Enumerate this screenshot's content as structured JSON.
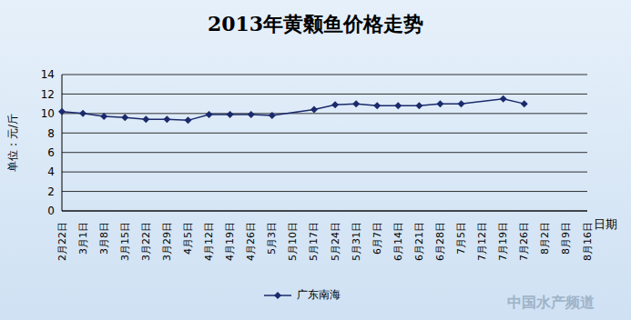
{
  "chart_data": {
    "type": "line",
    "title": "2013年黄颡鱼价格走势",
    "y_label": "单位：元/斤",
    "x_label": "日期",
    "categories": [
      "2月22日",
      "3月1日",
      "3月8日",
      "3月15日",
      "3月22日",
      "3月29日",
      "4月5日",
      "4月12日",
      "4月19日",
      "4月26日",
      "5月3日",
      "5月10日",
      "5月17日",
      "5月24日",
      "5月31日",
      "6月7日",
      "6月14日",
      "6月21日",
      "6月28日",
      "7月5日",
      "7月12日",
      "7月19日",
      "7月26日",
      "8月2日",
      "8月9日",
      "8月16日"
    ],
    "series": [
      {
        "name": "广东南海",
        "color": "#1a2a6c",
        "marker": "diamond",
        "values": [
          10.2,
          10.0,
          9.7,
          9.6,
          9.4,
          9.4,
          9.3,
          9.9,
          9.9,
          9.9,
          9.8,
          null,
          10.4,
          10.9,
          11.0,
          10.8,
          10.8,
          10.8,
          11.0,
          11.0,
          null,
          11.5,
          11.0,
          null,
          null,
          null
        ]
      }
    ],
    "ylim": [
      0,
      14
    ],
    "yticks": [
      0,
      2,
      4,
      6,
      8,
      10,
      12,
      14
    ],
    "grid": true,
    "legend": "bottom",
    "annotations": [
      "中国水产频道"
    ]
  }
}
